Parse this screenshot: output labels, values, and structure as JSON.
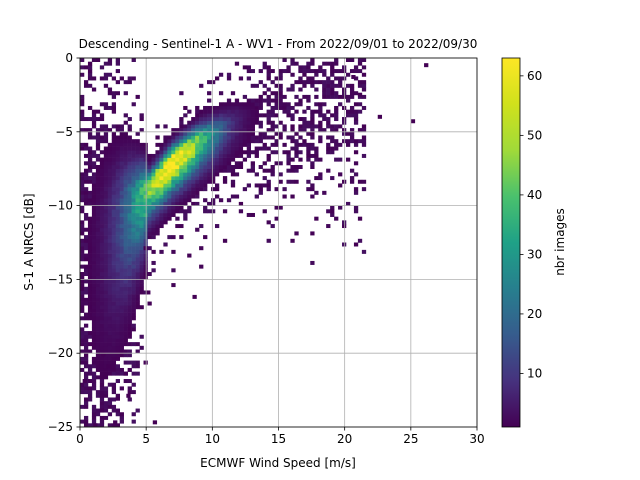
{
  "chart_data": {
    "type": "heatmap",
    "title": "Descending - Sentinel-1 A - WV1 - From 2022/09/01 to 2022/09/30",
    "xlabel": "ECMWF Wind Speed [m/s]",
    "ylabel": "S-1 A NRCS [dB]",
    "xlim": [
      0,
      30
    ],
    "ylim": [
      -25,
      0
    ],
    "xticks": [
      "0",
      "5",
      "10",
      "15",
      "20",
      "25",
      "30"
    ],
    "yticks": [
      "0",
      "−5",
      "−10",
      "−15",
      "−20",
      "−25"
    ],
    "grid": true,
    "bin_width_x": 0.3,
    "bin_width_y": 0.25,
    "colorbar": {
      "label": "nbr images",
      "range": [
        1,
        63
      ],
      "ticks": [
        "10",
        "20",
        "30",
        "40",
        "50",
        "60"
      ],
      "colormap": "viridis"
    },
    "density_model": {
      "center_curve": [
        [
          1.5,
          -12.0
        ],
        [
          3.0,
          -10.5
        ],
        [
          5.0,
          -9.0
        ],
        [
          7.0,
          -7.0
        ],
        [
          9.0,
          -5.6
        ],
        [
          11.0,
          -4.6
        ],
        [
          13.0,
          -3.8
        ],
        [
          15.0,
          -3.2
        ],
        [
          18.0,
          -2.4
        ],
        [
          20.0,
          -1.8
        ]
      ],
      "peak_x": 7.0,
      "peak_y": -7.0,
      "peak_count": 63
    },
    "outliers": [
      [
        26.0,
        -0.6
      ],
      [
        25.0,
        -4.4
      ],
      [
        22.5,
        -4.1
      ],
      [
        21.0,
        -2.6
      ],
      [
        20.5,
        -1.4
      ],
      [
        12.0,
        -10.0
      ],
      [
        8.5,
        -16.3
      ],
      [
        5.0,
        -16.0
      ],
      [
        5.5,
        -24.8
      ],
      [
        4.8,
        -13.0
      ],
      [
        3.3,
        -21.5
      ],
      [
        3.5,
        -23.0
      ],
      [
        2.0,
        -21.0
      ],
      [
        1.6,
        -20.2
      ],
      [
        0.2,
        -22.0
      ],
      [
        1.5,
        -24.0
      ],
      [
        2.7,
        -23.2
      ],
      [
        1.0,
        -25.0
      ],
      [
        2.5,
        -24.8
      ]
    ]
  }
}
